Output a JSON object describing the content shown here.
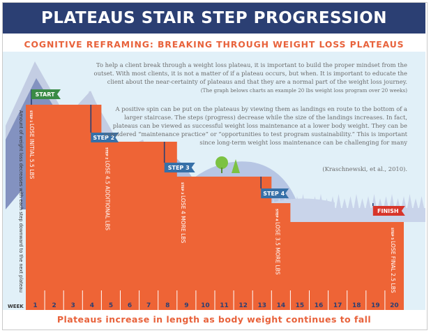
{
  "title": "PLATEAUS STAIR STEP PROGRESSION",
  "subtitle": "COGNITIVE REFRAMING: BREAKING THROUGH WEIGHT LOSS PLATEAUS",
  "paragraph1": "To help a client break through a weight loss plateau, it is important to build the proper mindset from the outset. With most clients, it is not a matter of if a plateau occurs, but when. It is important to educate the client about the near-certainty of plateaus and that they are a normal part of the weight loss journey.",
  "paragraph1_note": "(The graph belows charts an example 20 lbs weight loss program over 20 weeks)",
  "paragraph2": "A positive spin can be put on the plateaus by viewing them as landings en route to the bottom of a larger staircase. The steps (progress) decrease while the size of the landings increases. In fact, plateaus can be viewed as successful weight loss maintenance at a lower body weight.  They can be considered “maintenance practice” or “opportunities to test program sustainability.”  This is important since long-term weight loss maintenance can be challenging for many",
  "citation": "(Kraschnewski, et al., 2010).",
  "y_axis_label": "Amount of weight loss decreases with each step downward to the next plateau",
  "week_label": "WEEK",
  "weeks": [
    "1",
    "2",
    "3",
    "4",
    "5",
    "6",
    "7",
    "8",
    "9",
    "10",
    "11",
    "12",
    "13",
    "14",
    "15",
    "16",
    "17",
    "18",
    "19",
    "20"
  ],
  "flags": [
    {
      "label": "START"
    },
    {
      "label": "STEP 2"
    },
    {
      "label": "STEP 3"
    },
    {
      "label": "STEP 4"
    },
    {
      "label": "FINISH"
    }
  ],
  "steps": [
    {
      "tag": "STEP 1",
      "text": "LOSE INITIAL 5.5 LBS"
    },
    {
      "tag": "STEP 2",
      "text": "LOSE 4.5 ADDITIONAL LBS"
    },
    {
      "tag": "STEP 3",
      "text": "LOSE 4 MORE LBS"
    },
    {
      "tag": "STEP 4",
      "text": "LOSE 3.5 MORE LBS"
    },
    {
      "tag": "STEP 5",
      "text": "LOSE FINAL 2.5 LBS"
    }
  ],
  "bottom_caption": "Plateaus increase in length as body weight continues to fall",
  "colors": {
    "navy": "#2b3f73",
    "orange": "#ee6436",
    "sky": "#e1f0f8",
    "mountain_dark": "#7f8fbe",
    "mountain_light": "#c3cde3",
    "hill": "#aebedf",
    "hill_light": "#c9d4ea",
    "green_flag": "#3a8b46",
    "blue_flag": "#3670a8",
    "red_flag": "#d7352a",
    "tree_green": "#7cc243"
  }
}
